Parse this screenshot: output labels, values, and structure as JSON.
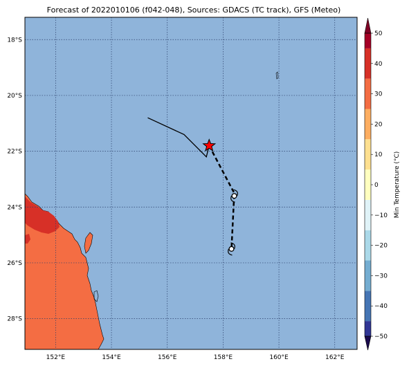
{
  "title": "Forecast of 2022010106 (f042-048), Sources: GDACS (TC track), GFS (Meteo)",
  "map": {
    "lon_range": [
      150.9,
      162.8
    ],
    "lat_range": [
      -29.1,
      -17.2
    ],
    "lon_ticks": [
      152,
      154,
      156,
      158,
      160,
      162
    ],
    "lat_ticks": [
      -18,
      -20,
      -22,
      -24,
      -26,
      -28
    ],
    "lon_tick_labels": [
      "152°E",
      "154°E",
      "156°E",
      "158°E",
      "160°E",
      "162°E"
    ],
    "lat_tick_labels": [
      "18°S",
      "20°S",
      "22°S",
      "24°S",
      "26°S",
      "28°S"
    ],
    "ocean_color": "#8fb4da",
    "land_color": "#f46d43",
    "land_hot_color": "#d73027",
    "grid": true
  },
  "track": {
    "past": [
      [
        155.3,
        -20.8
      ],
      [
        156.6,
        -21.4
      ],
      [
        157.4,
        -22.2
      ],
      [
        157.5,
        -21.8
      ]
    ],
    "forecast": [
      [
        157.5,
        -21.8
      ],
      [
        158.4,
        -23.5
      ],
      [
        158.3,
        -25.5
      ]
    ],
    "current_position": [
      157.5,
      -21.8
    ],
    "storm_symbols": [
      [
        158.4,
        -23.6
      ],
      [
        158.3,
        -25.5
      ]
    ]
  },
  "colorbar": {
    "label": "Min Temperature (°C)",
    "min": -50,
    "max": 50,
    "ticks": [
      50,
      40,
      30,
      20,
      10,
      0,
      -10,
      -20,
      -30,
      -40,
      -50
    ],
    "tick_labels": [
      "50",
      "40",
      "30",
      "20",
      "10",
      "0",
      "−10",
      "−20",
      "−30",
      "−40",
      "−50"
    ],
    "colors": [
      "#313695",
      "#4575b4",
      "#74add1",
      "#abd9e9",
      "#e0f3f8",
      "#ffffbf",
      "#fee090",
      "#fdae61",
      "#f46d43",
      "#d73027",
      "#a50026"
    ]
  }
}
